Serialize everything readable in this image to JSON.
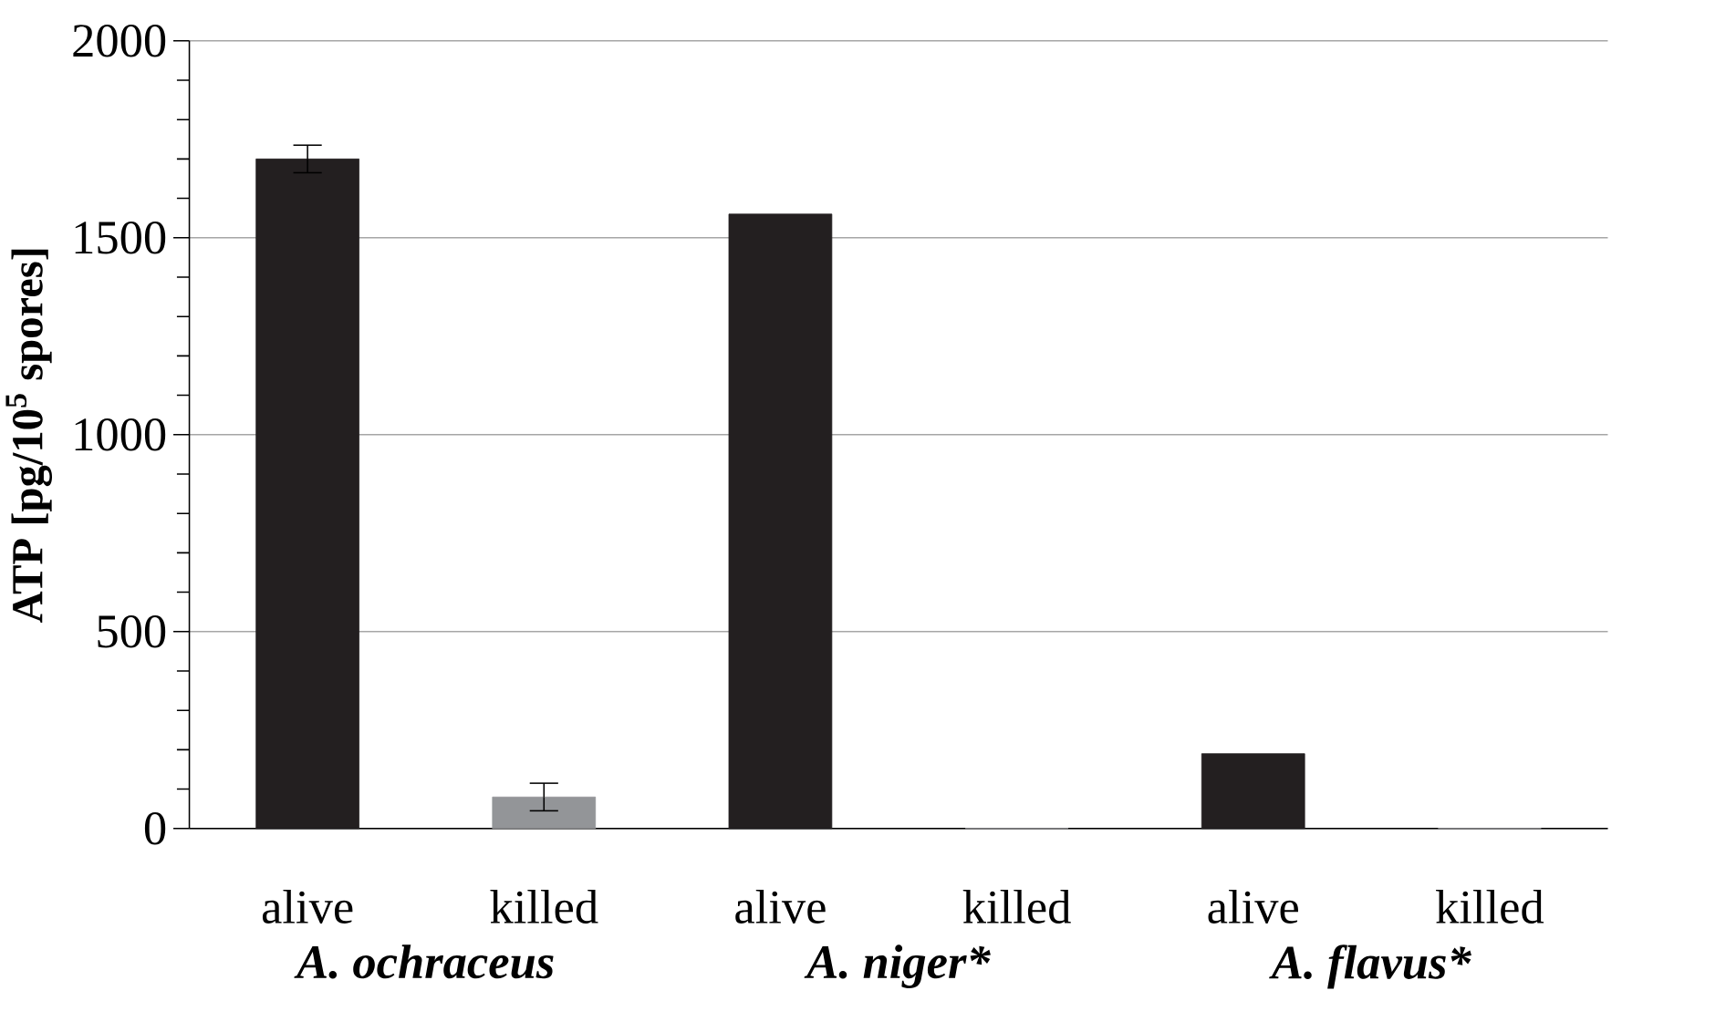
{
  "chart_data": {
    "type": "bar",
    "ylabel": "ATP [pg/10$^{5}$ spores]",
    "categories": [
      "alive",
      "killed",
      "alive",
      "killed",
      "alive",
      "killed"
    ],
    "values": [
      1700,
      80,
      1560,
      0,
      190,
      0
    ],
    "errors": [
      35,
      35,
      null,
      null,
      null,
      null
    ],
    "colors": [
      "#231f20",
      "#939598",
      "#231f20",
      "#939598",
      "#231f20",
      "#939598"
    ],
    "ylim": [
      0,
      2000
    ],
    "yticks": [
      0,
      500,
      1000,
      1500,
      2000
    ],
    "grid": "y",
    "annotations": [
      "A. ochraceus",
      "A. niger*",
      "A. flavus*"
    ]
  }
}
